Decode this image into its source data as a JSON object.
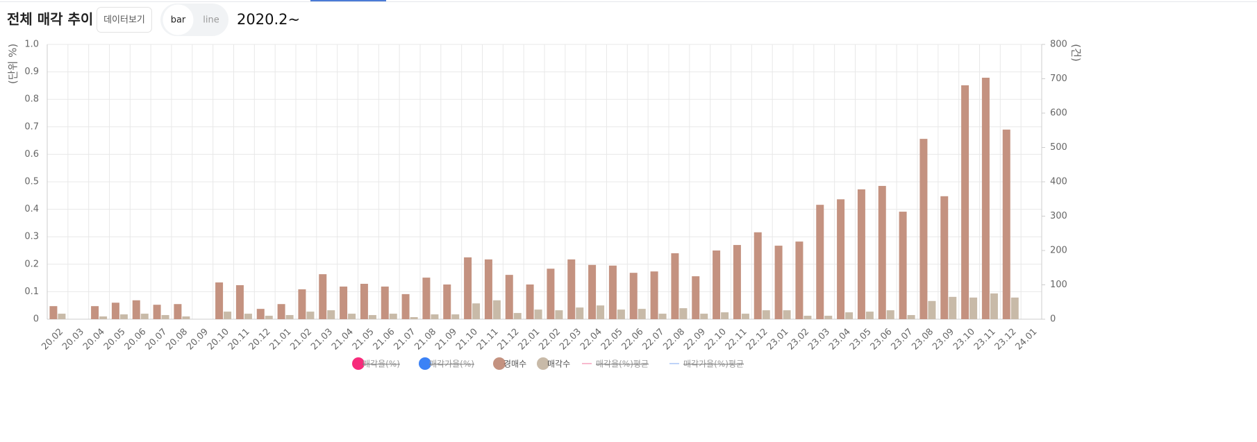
{
  "header": {
    "title": "전체 매각 추이",
    "button": "데이터보기",
    "toggle": [
      "bar",
      "line"
    ],
    "period": "2020.2~"
  },
  "chart_data": {
    "type": "bar",
    "y_label": "(단위 %)",
    "y2_label": "(건)",
    "categories": [
      "20.02",
      "20.03",
      "20.04",
      "20.05",
      "20.06",
      "20.07",
      "20.08",
      "20.09",
      "20.10",
      "20.11",
      "20.12",
      "21.01",
      "21.02",
      "21.03",
      "21.04",
      "21.05",
      "21.06",
      "21.07",
      "21.08",
      "21.09",
      "21.10",
      "21.11",
      "21.12",
      "22.01",
      "22.02",
      "22.03",
      "22.04",
      "22.05",
      "22.06",
      "22.07",
      "22.08",
      "22.09",
      "22.10",
      "22.11",
      "22.12",
      "23.01",
      "23.02",
      "23.03",
      "23.04",
      "23.05",
      "23.06",
      "23.07",
      "23.08",
      "23.09",
      "23.10",
      "23.11",
      "23.12",
      "24.01"
    ],
    "ylim": [
      0,
      1
    ],
    "yticks": [
      0,
      0.1,
      0.2,
      0.3,
      0.4,
      0.5,
      0.6,
      0.7,
      0.8,
      0.9,
      {
        "value": 1,
        "label": "1.0"
      }
    ],
    "y2lim": [
      0,
      800
    ],
    "y2ticks": [
      0,
      100,
      200,
      300,
      400,
      500,
      600,
      700,
      800
    ],
    "grid": true,
    "series": [
      {
        "name": "매각율(%)",
        "color": "#f72b7b",
        "marker": "circle",
        "hidden": true
      },
      {
        "name": "매각가율(%)",
        "color": "#3b82f6",
        "marker": "circle",
        "hidden": true
      },
      {
        "name": "경매수",
        "color": "#c49280",
        "marker": "circle",
        "axis": "y2",
        "values": [
          38,
          0,
          38,
          48,
          55,
          42,
          44,
          0,
          107,
          99,
          30,
          44,
          87,
          131,
          95,
          103,
          95,
          73,
          121,
          101,
          180,
          174,
          129,
          101,
          147,
          174,
          158,
          156,
          135,
          139,
          192,
          125,
          200,
          216,
          253,
          214,
          226,
          333,
          349,
          378,
          388,
          313,
          525,
          358,
          681,
          703,
          552,
          0
        ]
      },
      {
        "name": "매각수",
        "color": "#c8baa8",
        "marker": "circle",
        "axis": "y2",
        "values": [
          16,
          0,
          8,
          14,
          16,
          12,
          8,
          0,
          22,
          16,
          10,
          12,
          22,
          26,
          16,
          12,
          16,
          6,
          14,
          14,
          46,
          55,
          18,
          28,
          26,
          34,
          40,
          28,
          30,
          16,
          32,
          16,
          20,
          16,
          26,
          26,
          10,
          10,
          20,
          22,
          26,
          12,
          53,
          65,
          63,
          75,
          63,
          0
        ]
      },
      {
        "name": "매각율(%)평균",
        "color": "#f5a3bd",
        "marker": "line",
        "hidden": true
      },
      {
        "name": "매각가율(%)평균",
        "color": "#a9c4f5",
        "marker": "line",
        "hidden": true
      }
    ]
  }
}
